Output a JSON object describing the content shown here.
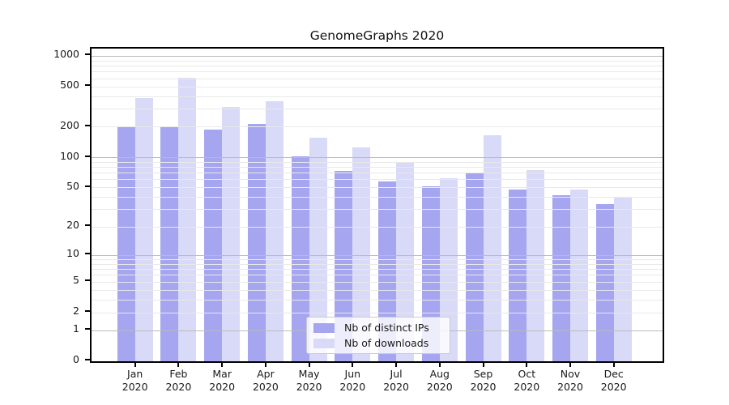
{
  "title": "GenomeGraphs 2020",
  "colors": {
    "ips_bar": "#a5a5f0",
    "downloads_bar": "#d9d9f8",
    "grid_major": "#bbbbbb",
    "grid_minor": "#e9e9e9",
    "axis": "#000000",
    "legend_border": "#cccccc"
  },
  "legend": {
    "items": [
      {
        "label": "Nb of distinct IPs",
        "key": "ips"
      },
      {
        "label": "Nb of downloads",
        "key": "downloads"
      }
    ]
  },
  "chart_data": {
    "type": "bar",
    "title": "GenomeGraphs 2020",
    "categories": [
      "Jan",
      "Feb",
      "Mar",
      "Apr",
      "May",
      "Jun",
      "Jul",
      "Aug",
      "Sep",
      "Oct",
      "Nov",
      "Dec"
    ],
    "category_year": "2020",
    "series": [
      {
        "name": "Nb of distinct IPs",
        "key": "ips",
        "values": [
          203,
          205,
          190,
          215,
          103,
          73,
          58,
          52,
          70,
          48,
          42,
          34
        ]
      },
      {
        "name": "Nb of downloads",
        "key": "downloads",
        "values": [
          390,
          610,
          315,
          360,
          158,
          125,
          89,
          62,
          165,
          75,
          48,
          40
        ]
      }
    ],
    "yticks": [
      0,
      1,
      2,
      5,
      10,
      20,
      50,
      100,
      200,
      500,
      1000
    ],
    "y_scale": "log10(1+v)",
    "ylim": [
      0,
      1250
    ],
    "grid": "on",
    "grid_major_at": [
      1,
      10,
      100,
      1000
    ],
    "legend_position": "inside-lower-center",
    "xlabel": "",
    "ylabel": ""
  }
}
